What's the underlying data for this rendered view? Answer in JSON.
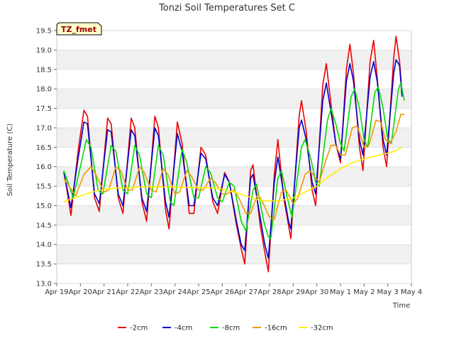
{
  "chart_data": {
    "type": "line",
    "title": "Tonzi Soil Temperatures Set C",
    "xlabel": "Time",
    "ylabel": "Soil Temperature (C)",
    "badge": "TZ_fmet",
    "xlim": [
      0,
      15
    ],
    "ylim": [
      13.0,
      19.5
    ],
    "grid": "horizontal alternating bands",
    "legend_position": "bottom-center",
    "x_ticks": [
      {
        "x": 0,
        "label": "Apr 19"
      },
      {
        "x": 1,
        "label": "Apr 20"
      },
      {
        "x": 2,
        "label": "Apr 21"
      },
      {
        "x": 3,
        "label": "Apr 22"
      },
      {
        "x": 4,
        "label": "Apr 23"
      },
      {
        "x": 5,
        "label": "Apr 24"
      },
      {
        "x": 6,
        "label": "Apr 25"
      },
      {
        "x": 7,
        "label": "Apr 26"
      },
      {
        "x": 8,
        "label": "Apr 27"
      },
      {
        "x": 9,
        "label": "Apr 28"
      },
      {
        "x": 10,
        "label": "Apr 29"
      },
      {
        "x": 11,
        "label": "Apr 30"
      },
      {
        "x": 12,
        "label": "May 1"
      },
      {
        "x": 13,
        "label": "May 2"
      },
      {
        "x": 14,
        "label": "May 3"
      },
      {
        "x": 15,
        "label": "May 4"
      }
    ],
    "y_ticks": [
      "13.0",
      "13.5",
      "14.0",
      "14.5",
      "15.0",
      "15.5",
      "16.0",
      "16.5",
      "17.0",
      "17.5",
      "18.0",
      "18.5",
      "19.0",
      "19.5"
    ],
    "series": [
      {
        "name": "-2cm",
        "color": "#ee0000",
        "points": [
          [
            0.3,
            15.9
          ],
          [
            0.6,
            14.75
          ],
          [
            0.9,
            16.4
          ],
          [
            1.15,
            17.45
          ],
          [
            1.3,
            17.3
          ],
          [
            1.6,
            15.2
          ],
          [
            1.8,
            14.85
          ],
          [
            2.15,
            17.25
          ],
          [
            2.3,
            17.1
          ],
          [
            2.6,
            15.2
          ],
          [
            2.8,
            14.8
          ],
          [
            3.15,
            17.25
          ],
          [
            3.3,
            17.0
          ],
          [
            3.6,
            15.1
          ],
          [
            3.8,
            14.6
          ],
          [
            4.15,
            17.3
          ],
          [
            4.3,
            17.0
          ],
          [
            4.6,
            14.9
          ],
          [
            4.75,
            14.4
          ],
          [
            5.1,
            17.15
          ],
          [
            5.3,
            16.6
          ],
          [
            5.6,
            14.8
          ],
          [
            5.8,
            14.8
          ],
          [
            6.1,
            16.5
          ],
          [
            6.3,
            16.3
          ],
          [
            6.6,
            15.1
          ],
          [
            6.8,
            14.8
          ],
          [
            7.1,
            15.85
          ],
          [
            7.3,
            15.6
          ],
          [
            7.6,
            14.5
          ],
          [
            7.8,
            13.9
          ],
          [
            7.95,
            13.5
          ],
          [
            8.2,
            15.9
          ],
          [
            8.3,
            16.05
          ],
          [
            8.6,
            14.5
          ],
          [
            8.8,
            13.8
          ],
          [
            8.95,
            13.3
          ],
          [
            9.2,
            15.8
          ],
          [
            9.35,
            16.7
          ],
          [
            9.6,
            15.2
          ],
          [
            9.8,
            14.5
          ],
          [
            9.9,
            14.15
          ],
          [
            10.25,
            17.3
          ],
          [
            10.35,
            17.7
          ],
          [
            10.55,
            16.9
          ],
          [
            10.8,
            15.4
          ],
          [
            10.95,
            15.0
          ],
          [
            11.25,
            18.1
          ],
          [
            11.4,
            18.65
          ],
          [
            11.6,
            17.6
          ],
          [
            11.8,
            16.6
          ],
          [
            12.0,
            16.1
          ],
          [
            12.25,
            18.5
          ],
          [
            12.4,
            19.15
          ],
          [
            12.55,
            18.4
          ],
          [
            12.8,
            16.5
          ],
          [
            12.95,
            15.9
          ],
          [
            13.25,
            18.7
          ],
          [
            13.4,
            19.25
          ],
          [
            13.55,
            18.3
          ],
          [
            13.8,
            16.5
          ],
          [
            13.95,
            16.0
          ],
          [
            14.25,
            18.8
          ],
          [
            14.35,
            19.35
          ],
          [
            14.5,
            18.7
          ],
          [
            14.6,
            17.9
          ]
        ]
      },
      {
        "name": "-4cm",
        "color": "#0000cc",
        "points": [
          [
            0.3,
            15.85
          ],
          [
            0.6,
            14.95
          ],
          [
            0.9,
            16.2
          ],
          [
            1.15,
            17.15
          ],
          [
            1.3,
            17.1
          ],
          [
            1.6,
            15.3
          ],
          [
            1.8,
            15.05
          ],
          [
            2.15,
            16.95
          ],
          [
            2.3,
            16.9
          ],
          [
            2.6,
            15.3
          ],
          [
            2.8,
            15.0
          ],
          [
            3.15,
            16.95
          ],
          [
            3.3,
            16.8
          ],
          [
            3.6,
            15.2
          ],
          [
            3.8,
            14.85
          ],
          [
            4.15,
            17.0
          ],
          [
            4.3,
            16.8
          ],
          [
            4.6,
            15.1
          ],
          [
            4.75,
            14.7
          ],
          [
            5.1,
            16.85
          ],
          [
            5.3,
            16.4
          ],
          [
            5.6,
            15.0
          ],
          [
            5.8,
            15.0
          ],
          [
            6.1,
            16.35
          ],
          [
            6.3,
            16.2
          ],
          [
            6.6,
            15.2
          ],
          [
            6.8,
            15.0
          ],
          [
            7.1,
            15.8
          ],
          [
            7.3,
            15.6
          ],
          [
            7.6,
            14.6
          ],
          [
            7.8,
            14.0
          ],
          [
            7.95,
            13.85
          ],
          [
            8.2,
            15.7
          ],
          [
            8.3,
            15.8
          ],
          [
            8.6,
            14.7
          ],
          [
            8.8,
            14.0
          ],
          [
            8.95,
            13.65
          ],
          [
            9.2,
            15.6
          ],
          [
            9.35,
            16.25
          ],
          [
            9.6,
            15.3
          ],
          [
            9.8,
            14.6
          ],
          [
            9.9,
            14.4
          ],
          [
            10.25,
            17.0
          ],
          [
            10.35,
            17.2
          ],
          [
            10.55,
            16.7
          ],
          [
            10.8,
            15.6
          ],
          [
            10.95,
            15.3
          ],
          [
            11.25,
            17.7
          ],
          [
            11.4,
            18.15
          ],
          [
            11.6,
            17.4
          ],
          [
            11.8,
            16.6
          ],
          [
            12.0,
            16.2
          ],
          [
            12.25,
            18.2
          ],
          [
            12.4,
            18.65
          ],
          [
            12.55,
            18.2
          ],
          [
            12.8,
            16.7
          ],
          [
            12.95,
            16.3
          ],
          [
            13.25,
            18.3
          ],
          [
            13.4,
            18.7
          ],
          [
            13.55,
            18.2
          ],
          [
            13.8,
            16.7
          ],
          [
            13.95,
            16.3
          ],
          [
            14.25,
            18.4
          ],
          [
            14.35,
            18.75
          ],
          [
            14.5,
            18.6
          ],
          [
            14.6,
            17.8
          ]
        ]
      },
      {
        "name": "-8cm",
        "color": "#00dd00",
        "points": [
          [
            0.3,
            15.9
          ],
          [
            0.7,
            15.2
          ],
          [
            1.0,
            16.0
          ],
          [
            1.25,
            16.7
          ],
          [
            1.45,
            16.5
          ],
          [
            1.75,
            15.4
          ],
          [
            1.95,
            15.3
          ],
          [
            2.3,
            16.55
          ],
          [
            2.5,
            16.4
          ],
          [
            2.8,
            15.4
          ],
          [
            3.0,
            15.3
          ],
          [
            3.3,
            16.55
          ],
          [
            3.5,
            16.3
          ],
          [
            3.8,
            15.3
          ],
          [
            4.0,
            15.2
          ],
          [
            4.3,
            16.55
          ],
          [
            4.5,
            16.3
          ],
          [
            4.8,
            15.1
          ],
          [
            4.95,
            15.0
          ],
          [
            5.3,
            16.45
          ],
          [
            5.5,
            16.1
          ],
          [
            5.8,
            15.2
          ],
          [
            6.0,
            15.2
          ],
          [
            6.3,
            16.0
          ],
          [
            6.5,
            15.85
          ],
          [
            6.8,
            15.2
          ],
          [
            7.0,
            15.1
          ],
          [
            7.3,
            15.6
          ],
          [
            7.5,
            15.5
          ],
          [
            7.8,
            14.6
          ],
          [
            8.0,
            14.35
          ],
          [
            8.3,
            15.4
          ],
          [
            8.45,
            15.55
          ],
          [
            8.75,
            14.6
          ],
          [
            8.95,
            14.2
          ],
          [
            9.05,
            14.15
          ],
          [
            9.35,
            15.7
          ],
          [
            9.5,
            15.9
          ],
          [
            9.75,
            15.2
          ],
          [
            9.95,
            14.7
          ],
          [
            10.35,
            16.5
          ],
          [
            10.5,
            16.7
          ],
          [
            10.75,
            16.2
          ],
          [
            10.95,
            15.6
          ],
          [
            11.1,
            15.5
          ],
          [
            11.45,
            17.2
          ],
          [
            11.6,
            17.5
          ],
          [
            11.8,
            17.1
          ],
          [
            12.0,
            16.6
          ],
          [
            12.15,
            16.4
          ],
          [
            12.45,
            17.8
          ],
          [
            12.6,
            18.0
          ],
          [
            12.8,
            17.5
          ],
          [
            13.0,
            16.7
          ],
          [
            13.15,
            16.5
          ],
          [
            13.45,
            17.9
          ],
          [
            13.6,
            18.05
          ],
          [
            13.8,
            17.5
          ],
          [
            14.0,
            16.7
          ],
          [
            14.15,
            16.6
          ],
          [
            14.45,
            18.0
          ],
          [
            14.55,
            18.15
          ],
          [
            14.7,
            17.7
          ]
        ]
      },
      {
        "name": "-16cm",
        "color": "#ee9900",
        "points": [
          [
            0.3,
            15.7
          ],
          [
            0.8,
            15.25
          ],
          [
            1.15,
            15.8
          ],
          [
            1.45,
            16.0
          ],
          [
            1.65,
            15.8
          ],
          [
            2.0,
            15.35
          ],
          [
            2.2,
            15.4
          ],
          [
            2.5,
            16.0
          ],
          [
            2.7,
            15.9
          ],
          [
            3.0,
            15.4
          ],
          [
            3.2,
            15.4
          ],
          [
            3.5,
            16.0
          ],
          [
            3.7,
            15.85
          ],
          [
            4.0,
            15.4
          ],
          [
            4.2,
            15.35
          ],
          [
            4.5,
            15.95
          ],
          [
            4.7,
            15.8
          ],
          [
            5.0,
            15.3
          ],
          [
            5.2,
            15.35
          ],
          [
            5.5,
            15.9
          ],
          [
            5.7,
            15.75
          ],
          [
            6.0,
            15.4
          ],
          [
            6.2,
            15.4
          ],
          [
            6.5,
            15.7
          ],
          [
            6.7,
            15.6
          ],
          [
            7.0,
            15.3
          ],
          [
            7.2,
            15.3
          ],
          [
            7.5,
            15.4
          ],
          [
            7.7,
            15.2
          ],
          [
            8.0,
            14.8
          ],
          [
            8.2,
            14.8
          ],
          [
            8.5,
            15.3
          ],
          [
            8.7,
            15.1
          ],
          [
            9.0,
            14.7
          ],
          [
            9.2,
            14.65
          ],
          [
            9.5,
            15.35
          ],
          [
            9.7,
            15.4
          ],
          [
            10.0,
            15.05
          ],
          [
            10.2,
            15.2
          ],
          [
            10.5,
            15.8
          ],
          [
            10.7,
            15.9
          ],
          [
            10.9,
            15.75
          ],
          [
            11.1,
            15.6
          ],
          [
            11.4,
            16.2
          ],
          [
            11.6,
            16.55
          ],
          [
            11.8,
            16.55
          ],
          [
            12.0,
            16.3
          ],
          [
            12.2,
            16.3
          ],
          [
            12.5,
            17.0
          ],
          [
            12.7,
            17.05
          ],
          [
            12.9,
            16.7
          ],
          [
            13.0,
            16.5
          ],
          [
            13.2,
            16.55
          ],
          [
            13.5,
            17.2
          ],
          [
            13.7,
            17.15
          ],
          [
            13.9,
            16.7
          ],
          [
            14.1,
            16.6
          ],
          [
            14.35,
            16.9
          ],
          [
            14.55,
            17.35
          ],
          [
            14.7,
            17.35
          ]
        ]
      },
      {
        "name": "-32cm",
        "color": "#ffee00",
        "points": [
          [
            0.3,
            15.1
          ],
          [
            1.0,
            15.25
          ],
          [
            1.5,
            15.35
          ],
          [
            2.0,
            15.42
          ],
          [
            2.5,
            15.45
          ],
          [
            3.0,
            15.45
          ],
          [
            3.5,
            15.48
          ],
          [
            4.0,
            15.48
          ],
          [
            4.5,
            15.48
          ],
          [
            5.0,
            15.48
          ],
          [
            5.5,
            15.47
          ],
          [
            6.0,
            15.46
          ],
          [
            6.5,
            15.46
          ],
          [
            7.0,
            15.42
          ],
          [
            7.5,
            15.35
          ],
          [
            8.0,
            15.25
          ],
          [
            8.5,
            15.15
          ],
          [
            9.0,
            15.12
          ],
          [
            9.5,
            15.13
          ],
          [
            10.0,
            15.2
          ],
          [
            10.5,
            15.35
          ],
          [
            11.0,
            15.5
          ],
          [
            11.5,
            15.75
          ],
          [
            12.0,
            15.95
          ],
          [
            12.5,
            16.1
          ],
          [
            13.0,
            16.2
          ],
          [
            13.5,
            16.28
          ],
          [
            14.0,
            16.35
          ],
          [
            14.3,
            16.4
          ],
          [
            14.6,
            16.5
          ]
        ]
      }
    ]
  }
}
